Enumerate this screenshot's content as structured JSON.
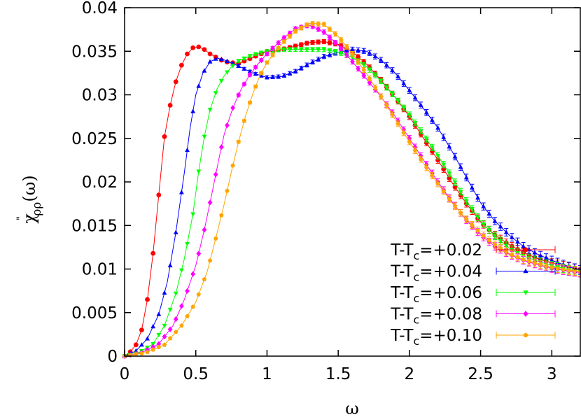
{
  "chart_data": {
    "type": "scatter",
    "xlabel": "ω",
    "ylabel": {
      "base": "χ",
      "prime": "\"",
      "sub": "ρρ",
      "arg": "(ω)"
    },
    "xlim": [
      0,
      3.2
    ],
    "ylim": [
      0,
      0.04
    ],
    "x_ticks": [
      "0",
      "0.5",
      "1",
      "1.5",
      "2",
      "2.5",
      "3"
    ],
    "y_ticks": [
      "0",
      "0.005",
      "0.01",
      "0.015",
      "0.02",
      "0.025",
      "0.03",
      "0.035",
      "0.04"
    ],
    "grid": false,
    "legend_position": "bottom-right",
    "series": [
      {
        "name": {
          "pre": "T-T",
          "sub": "c",
          "post": "=+0.02"
        },
        "color": "#ff0000",
        "marker": "circle",
        "x": [
          0,
          0.04,
          0.08,
          0.12,
          0.16,
          0.2,
          0.24,
          0.28,
          0.32,
          0.36,
          0.4,
          0.44,
          0.48,
          0.52,
          0.56,
          0.6,
          0.7,
          0.8,
          0.9,
          1.0,
          1.1,
          1.2,
          1.3,
          1.4,
          1.5,
          1.6,
          1.7,
          1.8,
          1.9,
          2.0,
          2.1,
          2.2,
          2.3,
          2.4,
          2.5,
          2.6,
          2.7,
          2.8,
          2.9,
          3.0,
          3.1,
          3.2
        ],
        "y": [
          0,
          0.0005,
          0.0013,
          0.003,
          0.0065,
          0.0118,
          0.0185,
          0.0252,
          0.0288,
          0.0315,
          0.0334,
          0.0347,
          0.0354,
          0.0355,
          0.0352,
          0.0347,
          0.0338,
          0.0336,
          0.0343,
          0.035,
          0.0352,
          0.0356,
          0.036,
          0.0361,
          0.0358,
          0.0349,
          0.0335,
          0.0317,
          0.0297,
          0.0275,
          0.025,
          0.0225,
          0.0199,
          0.0175,
          0.0154,
          0.0139,
          0.0128,
          0.0119,
          0.0112,
          0.0107,
          0.0103,
          0.0099
        ]
      },
      {
        "name": {
          "pre": "T-T",
          "sub": "c",
          "post": "=+0.04"
        },
        "color": "#0000ff",
        "marker": "triangle",
        "x": [
          0,
          0.08,
          0.16,
          0.24,
          0.3,
          0.36,
          0.42,
          0.46,
          0.5,
          0.55,
          0.6,
          0.65,
          0.7,
          0.8,
          0.9,
          1.0,
          1.1,
          1.2,
          1.3,
          1.4,
          1.5,
          1.6,
          1.7,
          1.8,
          1.9,
          2.0,
          2.1,
          2.2,
          2.3,
          2.4,
          2.5,
          2.6,
          2.7,
          2.8,
          2.9,
          3.0,
          3.1,
          3.2
        ],
        "y": [
          0,
          0.0006,
          0.002,
          0.0048,
          0.0085,
          0.0142,
          0.0211,
          0.0262,
          0.03,
          0.0325,
          0.0338,
          0.0342,
          0.034,
          0.0333,
          0.0325,
          0.032,
          0.0321,
          0.0327,
          0.0336,
          0.0344,
          0.0349,
          0.0352,
          0.035,
          0.034,
          0.0325,
          0.0305,
          0.0284,
          0.0262,
          0.0235,
          0.0205,
          0.0176,
          0.0155,
          0.0139,
          0.0126,
          0.0117,
          0.011,
          0.0104,
          0.0099
        ]
      },
      {
        "name": {
          "pre": "T-T",
          "sub": "c",
          "post": "=+0.06"
        },
        "color": "#00ff00",
        "marker": "triangle-down",
        "x": [
          0,
          0.1,
          0.2,
          0.28,
          0.36,
          0.42,
          0.48,
          0.52,
          0.56,
          0.6,
          0.65,
          0.7,
          0.75,
          0.8,
          0.9,
          1.0,
          1.1,
          1.2,
          1.3,
          1.4,
          1.5,
          1.6,
          1.7,
          1.8,
          1.9,
          2.0,
          2.1,
          2.2,
          2.3,
          2.4,
          2.5,
          2.6,
          2.7,
          2.8,
          2.9,
          3.0,
          3.1,
          3.2
        ],
        "y": [
          0,
          0.0004,
          0.0014,
          0.0035,
          0.0072,
          0.0112,
          0.0163,
          0.0212,
          0.0252,
          0.0283,
          0.0307,
          0.0322,
          0.0332,
          0.0339,
          0.0346,
          0.035,
          0.0352,
          0.0352,
          0.0352,
          0.0352,
          0.0349,
          0.0343,
          0.0332,
          0.0316,
          0.0297,
          0.0277,
          0.0254,
          0.023,
          0.0205,
          0.0178,
          0.0155,
          0.0138,
          0.0124,
          0.0115,
          0.0109,
          0.0104,
          0.01,
          0.0097
        ]
      },
      {
        "name": {
          "pre": "T-T",
          "sub": "c",
          "post": "=+0.08"
        },
        "color": "#ff00ff",
        "marker": "diamond",
        "x": [
          0,
          0.12,
          0.24,
          0.34,
          0.42,
          0.5,
          0.56,
          0.62,
          0.66,
          0.7,
          0.76,
          0.82,
          0.88,
          0.94,
          1.0,
          1.1,
          1.2,
          1.3,
          1.4,
          1.5,
          1.6,
          1.7,
          1.8,
          1.9,
          2.0,
          2.1,
          2.2,
          2.3,
          2.4,
          2.5,
          2.6,
          2.7,
          2.8,
          2.9,
          3.0,
          3.1,
          3.2
        ],
        "y": [
          0,
          0.0004,
          0.0014,
          0.0035,
          0.0065,
          0.0104,
          0.0145,
          0.0192,
          0.0225,
          0.0255,
          0.0285,
          0.0307,
          0.0323,
          0.0336,
          0.0347,
          0.0363,
          0.0376,
          0.038,
          0.0372,
          0.0357,
          0.0338,
          0.0318,
          0.0298,
          0.0275,
          0.025,
          0.0225,
          0.02,
          0.0177,
          0.0156,
          0.0139,
          0.0126,
          0.0117,
          0.011,
          0.0105,
          0.0101,
          0.0098,
          0.0096
        ]
      },
      {
        "name": {
          "pre": "T-T",
          "sub": "c",
          "post": "=+0.10"
        },
        "color": "#ffa500",
        "marker": "pentagon",
        "x": [
          0,
          0.15,
          0.28,
          0.4,
          0.5,
          0.58,
          0.64,
          0.7,
          0.75,
          0.8,
          0.85,
          0.9,
          0.95,
          1.0,
          1.1,
          1.2,
          1.3,
          1.4,
          1.5,
          1.6,
          1.7,
          1.8,
          1.9,
          2.0,
          2.1,
          2.2,
          2.3,
          2.4,
          2.5,
          2.6,
          2.7,
          2.8,
          2.9,
          3.0,
          3.1,
          3.2
        ],
        "y": [
          0,
          0.0004,
          0.0013,
          0.0035,
          0.0062,
          0.0097,
          0.0135,
          0.0175,
          0.0212,
          0.0246,
          0.0276,
          0.0301,
          0.0322,
          0.0337,
          0.0358,
          0.0373,
          0.0382,
          0.0381,
          0.0367,
          0.0347,
          0.0324,
          0.0298,
          0.0272,
          0.0246,
          0.0221,
          0.0198,
          0.0176,
          0.0157,
          0.0141,
          0.0128,
          0.0118,
          0.0111,
          0.0106,
          0.0102,
          0.0099,
          0.0097
        ]
      }
    ]
  }
}
